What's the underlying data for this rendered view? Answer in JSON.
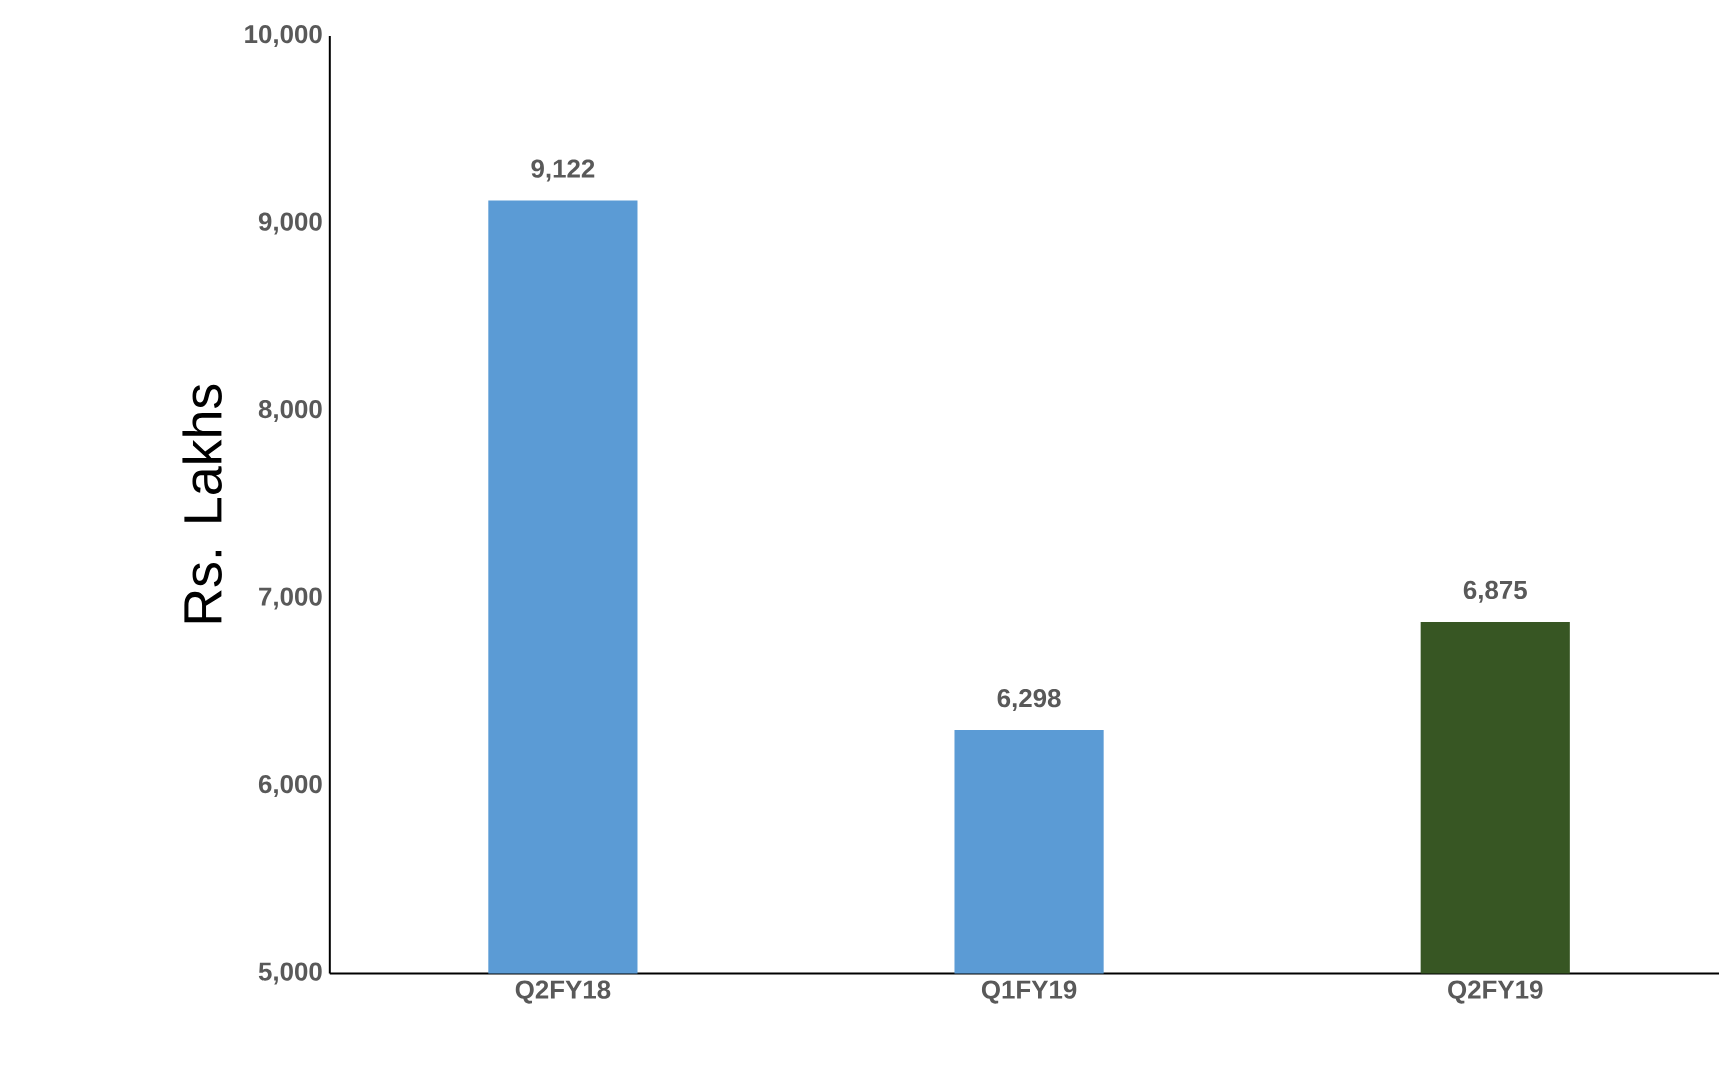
{
  "chart_data": {
    "type": "bar",
    "ylabel": "Rs. Lakhs",
    "categories": [
      "Q2FY18",
      "Q1FY19",
      "Q2FY19"
    ],
    "values": [
      9122,
      6298,
      6875
    ],
    "value_labels": [
      "9,122",
      "6,298",
      "6,875"
    ],
    "colors": [
      "#5b9bd5",
      "#5b9bd5",
      "#375623"
    ],
    "ylim": [
      5000,
      10000
    ],
    "yticks": [
      {
        "value": 5000,
        "label": "5,000"
      },
      {
        "value": 6000,
        "label": "6,000"
      },
      {
        "value": 7000,
        "label": "7,000"
      },
      {
        "value": 8000,
        "label": "8,000"
      },
      {
        "value": 9000,
        "label": "9,000"
      },
      {
        "value": 10000,
        "label": "10,000"
      }
    ],
    "grid": false
  }
}
